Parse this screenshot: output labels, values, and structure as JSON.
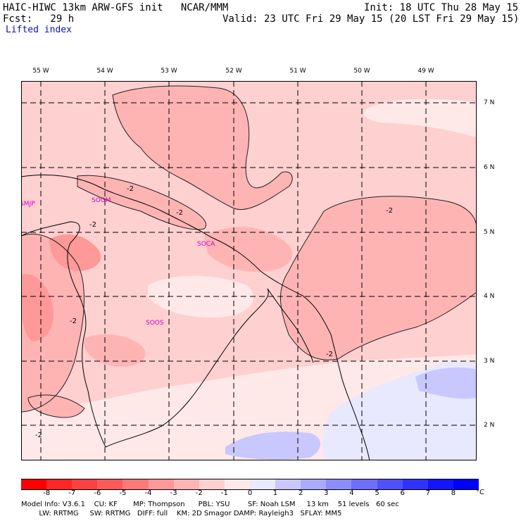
{
  "header": {
    "model_line": "HAIC-HIWC 13km ARW-GFS init   NCAR/MMM",
    "fcst_line": "Fcst:   29 h",
    "init_line": "Init: 18 UTC Thu 28 May 15",
    "valid_line": "Valid: 23 UTC Fri 29 May 15 (20 LST Fri 29 May 15)",
    "field_name": "Lifted index"
  },
  "map": {
    "lon_labels": [
      "55 W",
      "54 W",
      "53 W",
      "52 W",
      "51 W",
      "50 W",
      "49 W"
    ],
    "lat_labels": [
      "7 N",
      "6 N",
      "5 N",
      "4 N",
      "3 N",
      "2 N"
    ],
    "stations": [
      {
        "id": "SMJP"
      },
      {
        "id": "SOGM"
      },
      {
        "id": "SOCA"
      },
      {
        "id": "SOOS"
      }
    ],
    "contour_label": "-2"
  },
  "colorbar": {
    "ticks": [
      "-8",
      "-7",
      "-6",
      "-5",
      "-4",
      "-3",
      "-2",
      "-1",
      "0",
      "1",
      "2",
      "3",
      "4",
      "5",
      "6",
      "7",
      "8"
    ],
    "unit": "°C",
    "colors": [
      "#ff0000",
      "#ff2626",
      "#ff4040",
      "#ff5a5a",
      "#ff7878",
      "#ff9898",
      "#ffb4b4",
      "#ffd0d0",
      "#ffe8e8",
      "#e8e8ff",
      "#c8c8ff",
      "#aaaaff",
      "#8c8cff",
      "#6e6eff",
      "#5050ff",
      "#3232ff",
      "#1414ff",
      "#0000ff"
    ]
  },
  "footer": {
    "line1": "Model Info: V3.6.1    CU: KF       MP: Thompson      PBL: YSU        SF: Noah LSM     13 km    51 levels   60 sec",
    "line2": "        LW: RRTMG     SW: RRTMG   DIFF: full    KM: 2D Smagor DAMP: Rayleigh3   SFLAY: MM5"
  }
}
